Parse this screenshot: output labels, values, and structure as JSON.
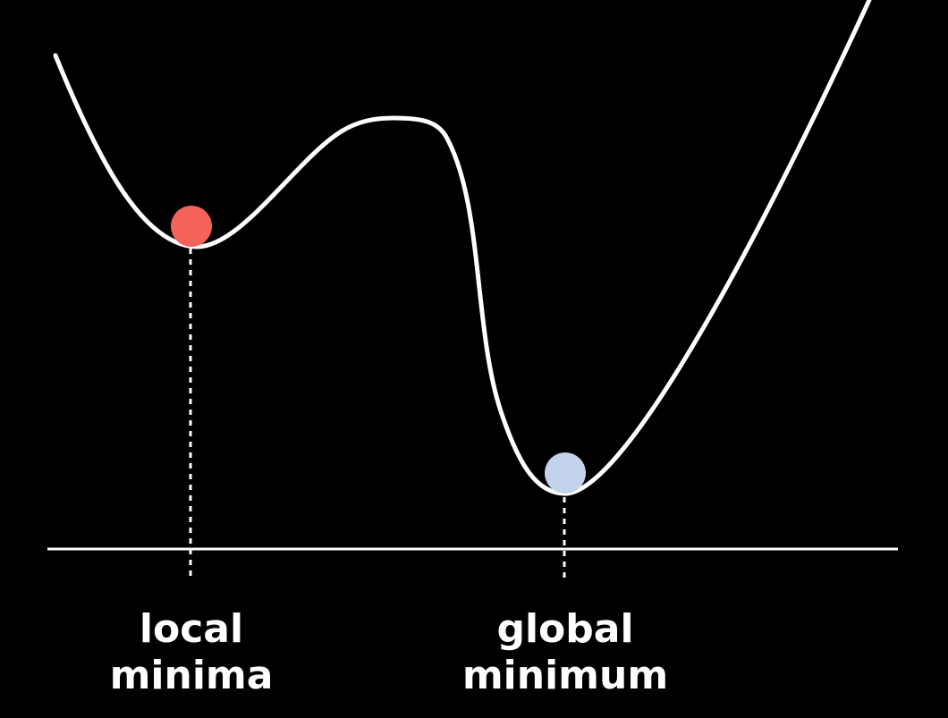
{
  "colors": {
    "background": "#000000",
    "curve": "#ffffff",
    "axis": "#ffffff",
    "local_ball": "#f4625a",
    "global_ball": "#c3d3ec"
  },
  "labels": {
    "local": {
      "line1": "local",
      "line2": "minima"
    },
    "global": {
      "line1": "global",
      "line2": "minimum"
    }
  }
}
